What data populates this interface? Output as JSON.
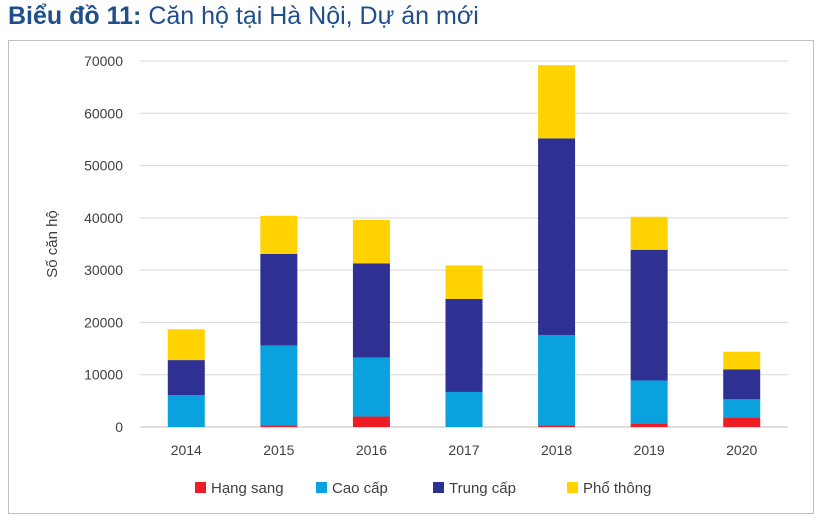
{
  "header": {
    "title_bold": "Biểu đồ 11:",
    "title_rest": "Căn hộ tại Hà Nội, Dự án mới"
  },
  "chart_data": {
    "type": "bar",
    "stacked": true,
    "title": "Biểu đồ 11: Căn hộ tại Hà Nội, Dự án mới",
    "xlabel": "",
    "ylabel": "Số căn hộ",
    "ylim": [
      0,
      70000
    ],
    "yticks": [
      0,
      10000,
      20000,
      30000,
      40000,
      50000,
      60000,
      70000
    ],
    "grid": true,
    "legend_position": "bottom",
    "categories": [
      "2014",
      "2015",
      "2016",
      "2017",
      "2018",
      "2019",
      "2020"
    ],
    "series": [
      {
        "name": "Hạng sang",
        "color": "#ee1c25",
        "values": [
          0,
          300,
          2000,
          0,
          300,
          700,
          1800
        ]
      },
      {
        "name": "Cao cấp",
        "color": "#0aa1df",
        "values": [
          6100,
          15300,
          11300,
          6700,
          17300,
          8200,
          3500
        ]
      },
      {
        "name": "Trung cấp",
        "color": "#2e3192",
        "values": [
          6700,
          17500,
          18000,
          17800,
          37600,
          25000,
          5700
        ]
      },
      {
        "name": "Phổ thông",
        "color": "#ffd200",
        "values": [
          5900,
          7300,
          8300,
          6400,
          14000,
          6300,
          3400
        ]
      }
    ]
  }
}
